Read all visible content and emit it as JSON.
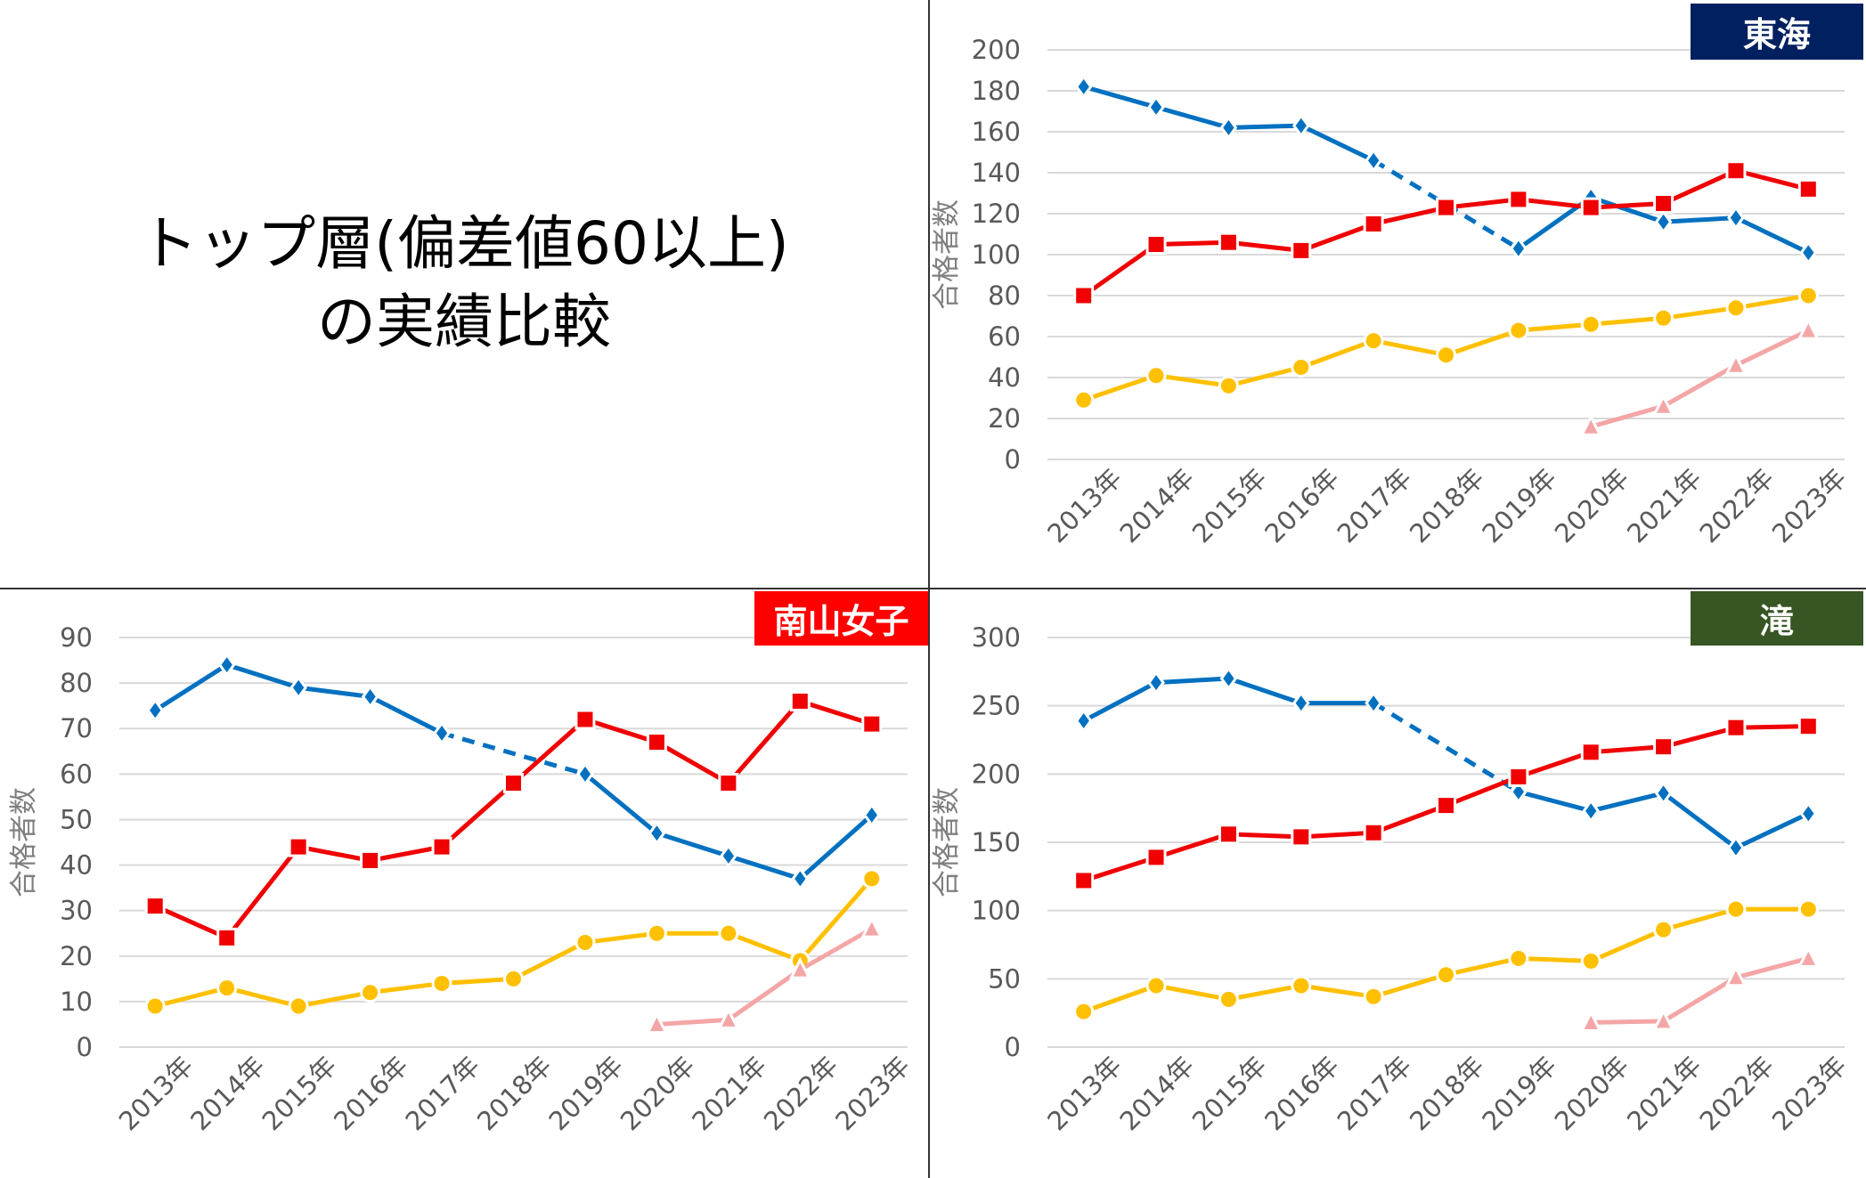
{
  "title": {
    "line1": "トップ層(偏差値60以上)",
    "line2": "の実績比較"
  },
  "chart_data": [
    {
      "type": "line",
      "school": "東海",
      "badge_color": "#002060",
      "ylabel": "合格者数",
      "ylim": [
        0,
        200
      ],
      "yticks": [
        0,
        20,
        40,
        60,
        80,
        100,
        120,
        140,
        160,
        180,
        200
      ],
      "categories": [
        "2013年",
        "2014年",
        "2015年",
        "2016年",
        "2017年",
        "2018年",
        "2019年",
        "2020年",
        "2021年",
        "2022年",
        "2023年"
      ],
      "grid": true,
      "series": [
        {
          "color": "#0070C0",
          "marker": "diamond",
          "values": [
            182,
            172,
            162,
            163,
            146,
            null,
            103,
            128,
            116,
            118,
            101
          ]
        },
        {
          "color": "#F00000",
          "marker": "square",
          "values": [
            80,
            105,
            106,
            102,
            115,
            123,
            127,
            123,
            125,
            141,
            132
          ]
        },
        {
          "color": "#FFC000",
          "marker": "circle",
          "values": [
            29,
            41,
            36,
            45,
            58,
            51,
            63,
            66,
            69,
            74,
            80
          ]
        },
        {
          "color": "#F4A6A6",
          "marker": "triangle",
          "values": [
            null,
            null,
            null,
            null,
            null,
            null,
            null,
            16,
            26,
            46,
            63
          ]
        }
      ]
    },
    {
      "type": "line",
      "school": "南山女子",
      "badge_color": "#FF0000",
      "ylabel": "合格者数",
      "ylim": [
        0,
        90
      ],
      "yticks": [
        0,
        10,
        20,
        30,
        40,
        50,
        60,
        70,
        80,
        90
      ],
      "categories": [
        "2013年",
        "2014年",
        "2015年",
        "2016年",
        "2017年",
        "2018年",
        "2019年",
        "2020年",
        "2021年",
        "2022年",
        "2023年"
      ],
      "grid": true,
      "series": [
        {
          "color": "#0070C0",
          "marker": "diamond",
          "values": [
            74,
            84,
            79,
            77,
            69,
            null,
            60,
            47,
            42,
            37,
            51
          ]
        },
        {
          "color": "#F00000",
          "marker": "square",
          "values": [
            31,
            24,
            44,
            41,
            44,
            58,
            72,
            67,
            58,
            76,
            71
          ]
        },
        {
          "color": "#FFC000",
          "marker": "circle",
          "values": [
            9,
            13,
            9,
            12,
            14,
            15,
            23,
            25,
            25,
            19,
            37
          ]
        },
        {
          "color": "#F4A6A6",
          "marker": "triangle",
          "values": [
            null,
            null,
            null,
            null,
            null,
            null,
            null,
            5,
            6,
            17,
            26
          ]
        }
      ]
    },
    {
      "type": "line",
      "school": "滝",
      "badge_color": "#375623",
      "ylabel": "合格者数",
      "ylim": [
        0,
        300
      ],
      "yticks": [
        0,
        50,
        100,
        150,
        200,
        250,
        300
      ],
      "categories": [
        "2013年",
        "2014年",
        "2015年",
        "2016年",
        "2017年",
        "2018年",
        "2019年",
        "2020年",
        "2021年",
        "2022年",
        "2023年"
      ],
      "grid": true,
      "series": [
        {
          "color": "#0070C0",
          "marker": "diamond",
          "values": [
            239,
            267,
            270,
            252,
            252,
            null,
            187,
            173,
            186,
            146,
            171
          ]
        },
        {
          "color": "#F00000",
          "marker": "square",
          "values": [
            122,
            139,
            156,
            154,
            157,
            177,
            198,
            216,
            220,
            234,
            235
          ]
        },
        {
          "color": "#FFC000",
          "marker": "circle",
          "values": [
            26,
            45,
            35,
            45,
            37,
            53,
            65,
            63,
            86,
            101,
            101
          ]
        },
        {
          "color": "#F4A6A6",
          "marker": "triangle",
          "values": [
            null,
            null,
            null,
            null,
            null,
            null,
            null,
            18,
            19,
            51,
            65
          ]
        }
      ]
    }
  ]
}
